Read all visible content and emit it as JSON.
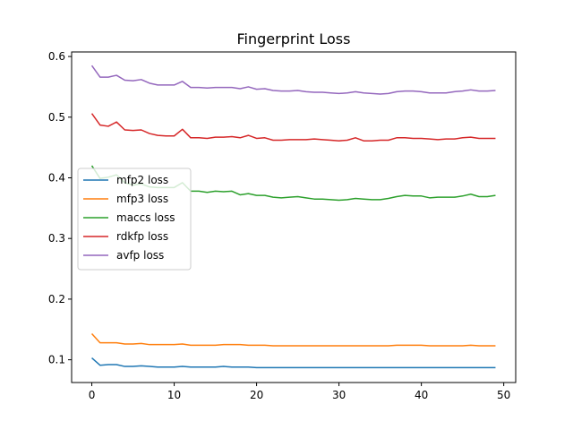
{
  "chart_data": {
    "type": "line",
    "title": "Fingerprint Loss",
    "xlabel": "",
    "ylabel": "",
    "xlim": [
      -2.45,
      51.45
    ],
    "ylim": [
      0.0625,
      0.6075
    ],
    "xticks": [
      0,
      10,
      20,
      30,
      40,
      50
    ],
    "xtick_labels": [
      "0",
      "10",
      "20",
      "30",
      "40",
      "50"
    ],
    "yticks": [
      0.1,
      0.2,
      0.3,
      0.4,
      0.5,
      0.6
    ],
    "ytick_labels": [
      "0.1",
      "0.2",
      "0.3",
      "0.4",
      "0.5",
      "0.6"
    ],
    "grid": false,
    "legend_position": "center-left",
    "x": [
      0,
      1,
      2,
      3,
      4,
      5,
      6,
      7,
      8,
      9,
      10,
      11,
      12,
      13,
      14,
      15,
      16,
      17,
      18,
      19,
      20,
      21,
      22,
      23,
      24,
      25,
      26,
      27,
      28,
      29,
      30,
      31,
      32,
      33,
      34,
      35,
      36,
      37,
      38,
      39,
      40,
      41,
      42,
      43,
      44,
      45,
      46,
      47,
      48,
      49
    ],
    "series": [
      {
        "name": "mfp2 loss",
        "color": "#1f77b4",
        "values": [
          0.103,
          0.091,
          0.092,
          0.092,
          0.089,
          0.089,
          0.09,
          0.089,
          0.088,
          0.088,
          0.088,
          0.089,
          0.088,
          0.088,
          0.088,
          0.088,
          0.089,
          0.088,
          0.088,
          0.088,
          0.087,
          0.087,
          0.087,
          0.087,
          0.087,
          0.087,
          0.087,
          0.087,
          0.087,
          0.087,
          0.087,
          0.087,
          0.087,
          0.087,
          0.087,
          0.087,
          0.087,
          0.087,
          0.087,
          0.087,
          0.087,
          0.087,
          0.087,
          0.087,
          0.087,
          0.087,
          0.087,
          0.087,
          0.087,
          0.087
        ]
      },
      {
        "name": "mfp3 loss",
        "color": "#ff7f0e",
        "values": [
          0.143,
          0.128,
          0.128,
          0.128,
          0.126,
          0.126,
          0.127,
          0.125,
          0.125,
          0.125,
          0.125,
          0.126,
          0.124,
          0.124,
          0.124,
          0.124,
          0.125,
          0.125,
          0.125,
          0.124,
          0.124,
          0.124,
          0.123,
          0.123,
          0.123,
          0.123,
          0.123,
          0.123,
          0.123,
          0.123,
          0.123,
          0.123,
          0.123,
          0.123,
          0.123,
          0.123,
          0.123,
          0.124,
          0.124,
          0.124,
          0.124,
          0.123,
          0.123,
          0.123,
          0.123,
          0.123,
          0.124,
          0.123,
          0.123,
          0.123
        ]
      },
      {
        "name": "maccs loss",
        "color": "#2ca02c",
        "values": [
          0.42,
          0.399,
          0.401,
          0.405,
          0.392,
          0.388,
          0.39,
          0.385,
          0.384,
          0.384,
          0.384,
          0.392,
          0.378,
          0.378,
          0.376,
          0.378,
          0.377,
          0.378,
          0.372,
          0.374,
          0.371,
          0.371,
          0.368,
          0.367,
          0.368,
          0.369,
          0.367,
          0.365,
          0.365,
          0.364,
          0.363,
          0.364,
          0.366,
          0.365,
          0.364,
          0.364,
          0.366,
          0.369,
          0.371,
          0.37,
          0.37,
          0.367,
          0.368,
          0.368,
          0.368,
          0.37,
          0.373,
          0.369,
          0.369,
          0.371
        ]
      },
      {
        "name": "rdkfp loss",
        "color": "#d62728",
        "values": [
          0.506,
          0.487,
          0.485,
          0.492,
          0.479,
          0.478,
          0.479,
          0.473,
          0.47,
          0.469,
          0.469,
          0.48,
          0.466,
          0.466,
          0.465,
          0.467,
          0.467,
          0.468,
          0.466,
          0.47,
          0.465,
          0.466,
          0.462,
          0.462,
          0.463,
          0.463,
          0.463,
          0.464,
          0.463,
          0.462,
          0.461,
          0.462,
          0.466,
          0.461,
          0.461,
          0.462,
          0.462,
          0.466,
          0.466,
          0.465,
          0.465,
          0.464,
          0.463,
          0.464,
          0.464,
          0.466,
          0.467,
          0.465,
          0.465,
          0.465
        ]
      },
      {
        "name": "avfp loss",
        "color": "#9467bd",
        "values": [
          0.585,
          0.566,
          0.566,
          0.569,
          0.561,
          0.56,
          0.562,
          0.556,
          0.553,
          0.553,
          0.553,
          0.559,
          0.549,
          0.549,
          0.548,
          0.549,
          0.549,
          0.549,
          0.547,
          0.55,
          0.546,
          0.547,
          0.544,
          0.543,
          0.543,
          0.544,
          0.542,
          0.541,
          0.541,
          0.54,
          0.539,
          0.54,
          0.542,
          0.54,
          0.539,
          0.538,
          0.539,
          0.542,
          0.543,
          0.543,
          0.542,
          0.54,
          0.54,
          0.54,
          0.542,
          0.543,
          0.545,
          0.543,
          0.543,
          0.544
        ]
      }
    ]
  }
}
